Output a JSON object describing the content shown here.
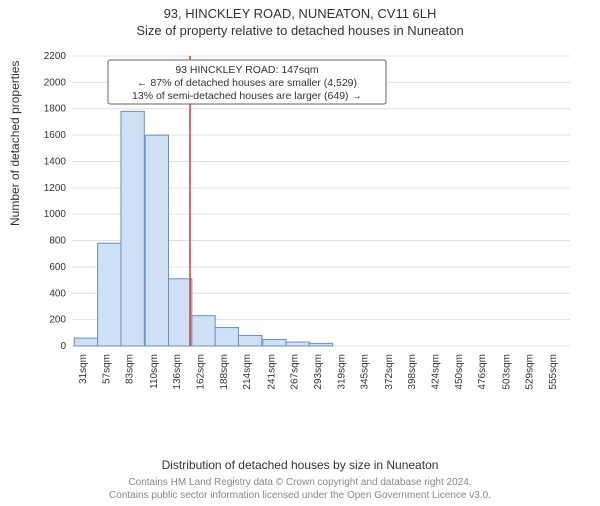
{
  "title_main": "93, HINCKLEY ROAD, NUNEATON, CV11 6LH",
  "title_sub": "Size of property relative to detached houses in Nuneaton",
  "ylabel": "Number of detached properties",
  "xlabel": "Distribution of detached houses by size in Nuneaton",
  "footer_line1": "Contains HM Land Registry data © Crown copyright and database right 2024.",
  "footer_line2": "Contains public sector information licensed under the Open Government Licence v3.0.",
  "annotation": {
    "line1": "93 HINCKLEY ROAD: 147sqm",
    "line2": "← 87% of detached houses are smaller (4,529)",
    "line3": "13% of semi-detached houses are larger (649) →"
  },
  "chart": {
    "type": "histogram",
    "bar_fill": "#cfe0f5",
    "bar_stroke": "#6a8fbf",
    "marker_color": "#d02a2a",
    "marker_value": 147,
    "background_color": "#ffffff",
    "grid_color": "#e0e0e0",
    "text_color": "#333333",
    "footer_color": "#888888",
    "ylim": [
      0,
      2200
    ],
    "ytick_step": 200,
    "categories": [
      "31sqm",
      "57sqm",
      "83sqm",
      "110sqm",
      "136sqm",
      "162sqm",
      "188sqm",
      "214sqm",
      "241sqm",
      "267sqm",
      "293sqm",
      "319sqm",
      "345sqm",
      "372sqm",
      "398sqm",
      "424sqm",
      "450sqm",
      "476sqm",
      "503sqm",
      "529sqm",
      "555sqm"
    ],
    "values": [
      60,
      780,
      1780,
      1600,
      510,
      230,
      140,
      80,
      50,
      30,
      20,
      0,
      0,
      0,
      0,
      0,
      0,
      0,
      0,
      0,
      0
    ],
    "x_numeric": [
      31,
      57,
      83,
      110,
      136,
      162,
      188,
      214,
      241,
      267,
      293,
      319,
      345,
      372,
      398,
      424,
      450,
      476,
      503,
      529,
      555
    ],
    "title_fontsize": 13,
    "label_fontsize": 12,
    "tick_fontsize": 10,
    "annot_fontsize": 10.5
  }
}
